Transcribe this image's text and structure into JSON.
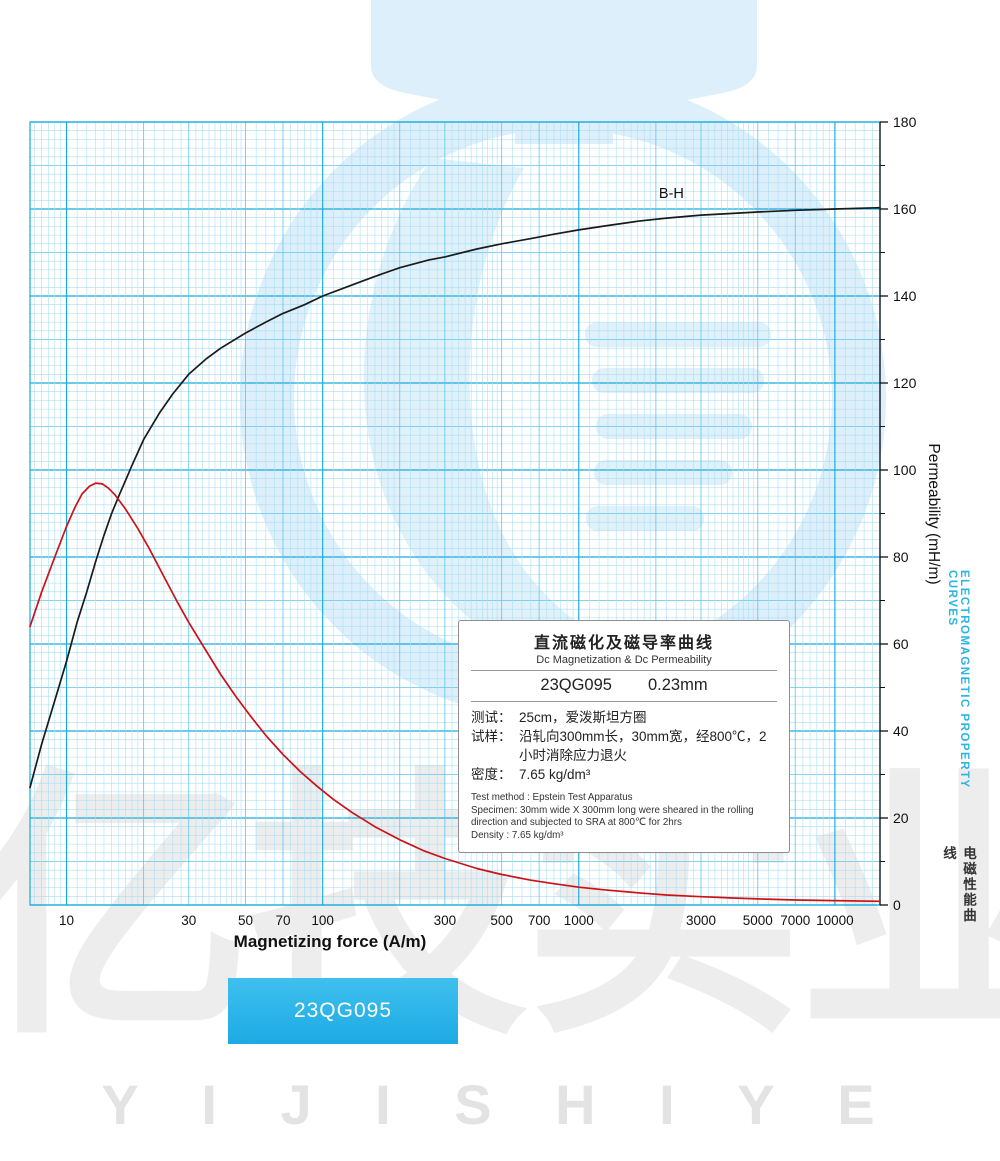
{
  "watermark": {
    "cn": "亿技实业",
    "en": "Y I J I S H I Y E"
  },
  "chart_data": {
    "type": "line",
    "x_scale": "log",
    "title": "直流磁化及磁导率曲线",
    "xlabel": "Magnetizing force (A/m)",
    "ylabel": "Permeability (mH/m)",
    "xlim": [
      7.2,
      15000
    ],
    "ylim": [
      0,
      180
    ],
    "x_ticks": [
      10,
      30,
      50,
      70,
      100,
      300,
      500,
      700,
      1000,
      3000,
      5000,
      7000,
      10000
    ],
    "y_ticks": [
      0,
      20,
      40,
      60,
      80,
      100,
      120,
      140,
      160,
      180
    ],
    "grid": true,
    "grid_colors": {
      "minor": "#a6ddf3",
      "mid": "#5cc6ec",
      "major": "#17abdd"
    },
    "axis_color": "#111111",
    "series": [
      {
        "name": "B-H",
        "color": "#1a1a1a",
        "points": [
          [
            7.2,
            27
          ],
          [
            8,
            37
          ],
          [
            9,
            47
          ],
          [
            10,
            56
          ],
          [
            11,
            65
          ],
          [
            12,
            72
          ],
          [
            13,
            79
          ],
          [
            14,
            85
          ],
          [
            15,
            90
          ],
          [
            16,
            94
          ],
          [
            18,
            101
          ],
          [
            20,
            107
          ],
          [
            23,
            113
          ],
          [
            26,
            117.5
          ],
          [
            30,
            122
          ],
          [
            35,
            125.5
          ],
          [
            40,
            128
          ],
          [
            50,
            131.5
          ],
          [
            60,
            134
          ],
          [
            70,
            136
          ],
          [
            85,
            138
          ],
          [
            100,
            140
          ],
          [
            130,
            142.5
          ],
          [
            160,
            144.5
          ],
          [
            200,
            146.5
          ],
          [
            260,
            148.3
          ],
          [
            300,
            149
          ],
          [
            400,
            150.8
          ],
          [
            500,
            152
          ],
          [
            650,
            153.2
          ],
          [
            800,
            154.2
          ],
          [
            1000,
            155.2
          ],
          [
            1300,
            156.2
          ],
          [
            1700,
            157.2
          ],
          [
            2200,
            157.9
          ],
          [
            3000,
            158.6
          ],
          [
            4000,
            159
          ],
          [
            5000,
            159.3
          ],
          [
            7000,
            159.7
          ],
          [
            10000,
            160
          ],
          [
            15000,
            160.3
          ]
        ]
      },
      {
        "name": "Dc Permeability",
        "color": "#cf1016",
        "points": [
          [
            7.2,
            64
          ],
          [
            8,
            72
          ],
          [
            9,
            80
          ],
          [
            10,
            87
          ],
          [
            10.8,
            91.5
          ],
          [
            11.5,
            94.5
          ],
          [
            12.3,
            96.3
          ],
          [
            13,
            97
          ],
          [
            13.8,
            96.8
          ],
          [
            14.6,
            95.8
          ],
          [
            15.5,
            94.2
          ],
          [
            17,
            91
          ],
          [
            19,
            86.5
          ],
          [
            21,
            82
          ],
          [
            24,
            75.5
          ],
          [
            27,
            69.8
          ],
          [
            30,
            65
          ],
          [
            35,
            58.5
          ],
          [
            40,
            53
          ],
          [
            46,
            47.8
          ],
          [
            52,
            43.6
          ],
          [
            60,
            39
          ],
          [
            70,
            34.6
          ],
          [
            82,
            30.6
          ],
          [
            95,
            27.3
          ],
          [
            110,
            24.3
          ],
          [
            130,
            21.3
          ],
          [
            160,
            18
          ],
          [
            200,
            15
          ],
          [
            250,
            12.4
          ],
          [
            300,
            10.7
          ],
          [
            400,
            8.4
          ],
          [
            500,
            7
          ],
          [
            650,
            5.7
          ],
          [
            800,
            4.9
          ],
          [
            1000,
            4.1
          ],
          [
            1300,
            3.4
          ],
          [
            1700,
            2.8
          ],
          [
            2200,
            2.3
          ],
          [
            3000,
            1.9
          ],
          [
            4000,
            1.6
          ],
          [
            5000,
            1.4
          ],
          [
            7000,
            1.15
          ],
          [
            10000,
            1
          ],
          [
            15000,
            0.85
          ]
        ]
      }
    ],
    "annotations": [
      {
        "text": "B-H",
        "x": 2300,
        "y": 162.5
      }
    ],
    "legend_position": "none"
  },
  "info_box": {
    "title_cn": "直流磁化及磁导率曲线",
    "title_en": "Dc Magnetization & Dc Permeability",
    "model": "23QG095",
    "thickness": "0.23mm",
    "rows_cn": [
      {
        "label": "测试：",
        "value": "25cm，爱泼斯坦方圈"
      },
      {
        "label": "试样：",
        "value": "沿轧向300mm长，30mm宽，经800℃，2小时消除应力退火"
      },
      {
        "label": "密度：",
        "value": "7.65 kg/dm³"
      }
    ],
    "en_lines": [
      "Test method : Epstein Test Apparatus",
      "Specimen: 30mm wide X 300mm long were sheared in the rolling direction and subjected to SRA at 800℃ for 2hrs",
      "Density : 7.65 kg/dm³"
    ]
  },
  "side_caption": {
    "en": "ELECTROMAGNETIC PROPERTY CURVES",
    "cn": "电磁性能曲线",
    "accent_color": "#29b4e4"
  },
  "footer_button": {
    "label": "23QG095",
    "color": "#2db4e9"
  }
}
